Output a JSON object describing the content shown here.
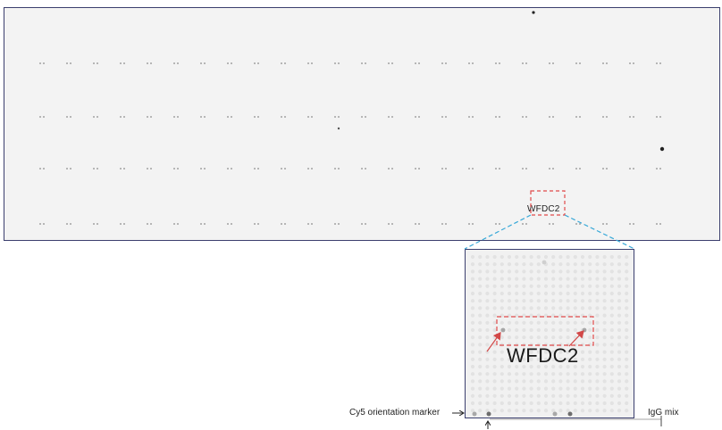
{
  "overview": {
    "target_label": "WFDC2"
  },
  "zoom": {
    "target_label": "WFDC2",
    "orientation_marker_label": "Cy5 orientation marker",
    "igg_label": "IgG mix"
  },
  "colors": {
    "frame": "#3b3f6e",
    "highlight": "#e04a4a",
    "connector": "#37a8d8",
    "spot": "#9a9a9a",
    "slide_bg": "#f3f3f3"
  }
}
